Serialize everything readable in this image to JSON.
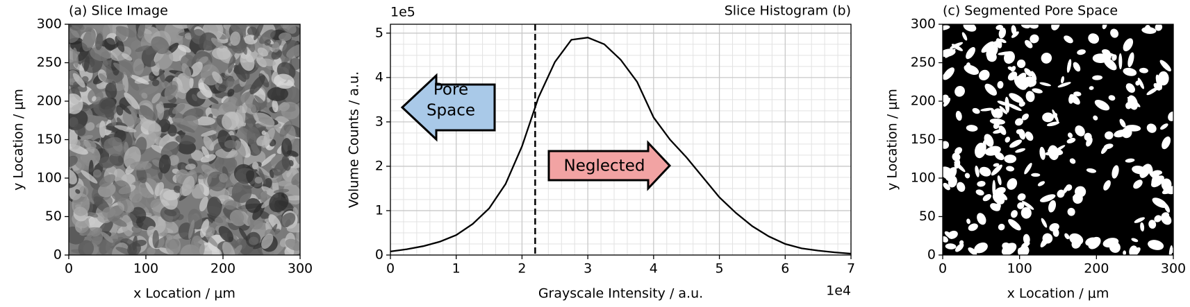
{
  "chart_data": [
    {
      "type": "image",
      "style": "grayscale",
      "title": "(a) Slice Image",
      "xlabel": "x Location / μm",
      "ylabel": "y Location / μm",
      "xlim": [
        0,
        300
      ],
      "ylim": [
        0,
        300
      ],
      "xticks": [
        0,
        100,
        200,
        300
      ],
      "yticks": [
        0,
        50,
        100,
        150,
        200,
        250,
        300
      ]
    },
    {
      "type": "line",
      "title": "Slice Histogram (b)",
      "xlabel": "Grayscale Intensity / a.u.",
      "ylabel": "Volume Counts / a.u.",
      "x_offset": "1e4",
      "y_offset": "1e5",
      "x": [
        0,
        0.25,
        0.5,
        0.75,
        1,
        1.25,
        1.5,
        1.75,
        2,
        2.25,
        2.5,
        2.75,
        3,
        3.25,
        3.5,
        3.75,
        4,
        4.25,
        4.5,
        4.75,
        5,
        5.25,
        5.5,
        5.75,
        6,
        6.25,
        6.5,
        6.75,
        7
      ],
      "values": [
        0.08,
        0.13,
        0.2,
        0.3,
        0.45,
        0.7,
        1.05,
        1.6,
        2.45,
        3.55,
        4.35,
        4.85,
        4.9,
        4.75,
        4.4,
        3.9,
        3.1,
        2.6,
        2.2,
        1.75,
        1.3,
        0.95,
        0.65,
        0.42,
        0.25,
        0.15,
        0.1,
        0.06,
        0.03
      ],
      "color": "#000000",
      "threshold": 2.2,
      "xlim": [
        0,
        7
      ],
      "ylim": [
        0,
        5.2
      ],
      "xticks": [
        0,
        1,
        2,
        3,
        4,
        5,
        6,
        7
      ],
      "yticks": [
        0,
        1,
        2,
        3,
        4,
        5
      ],
      "grid": true,
      "minor_grid": true,
      "annotations": [
        {
          "text": [
            "Pore",
            "Space"
          ],
          "color": "#a9c9e8"
        },
        {
          "text": "Neglected",
          "color": "#f2a3a3"
        }
      ]
    },
    {
      "type": "image",
      "style": "binary",
      "title": "(c) Segmented Pore Space",
      "xlabel": "x Location / μm",
      "ylabel": "y Location / μm",
      "xlim": [
        0,
        300
      ],
      "ylim": [
        0,
        300
      ],
      "xticks": [
        0,
        100,
        200,
        300
      ],
      "yticks": [
        0,
        50,
        100,
        150,
        200,
        250,
        300
      ]
    }
  ]
}
